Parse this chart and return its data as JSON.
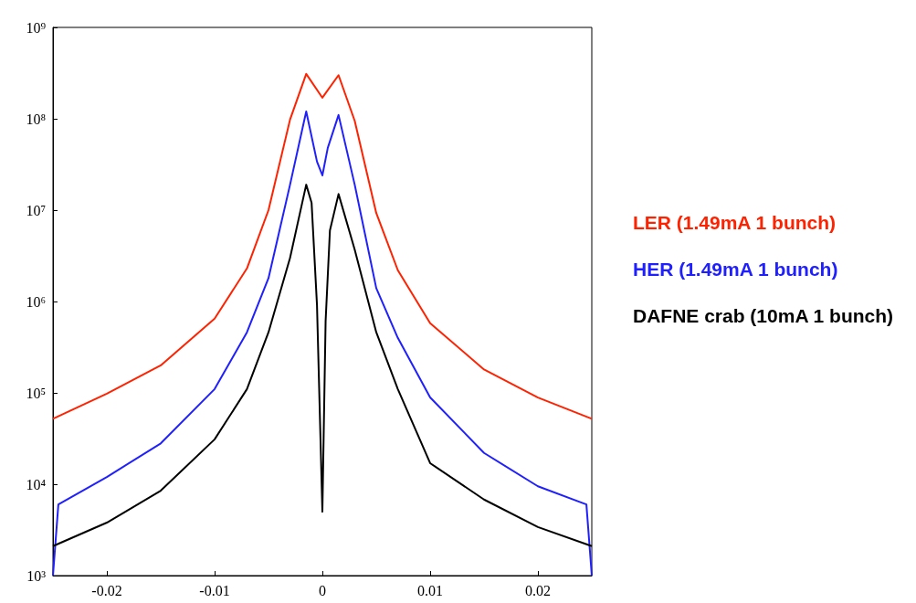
{
  "chart_data": {
    "type": "line",
    "log": "y",
    "xlim": [
      -0.025,
      0.025
    ],
    "xticks": [
      -0.02,
      -0.01,
      0,
      0.01,
      0.02
    ],
    "ylim": [
      1000,
      1000000000
    ],
    "yticks": [
      {
        "value": 1000,
        "label": "10³"
      },
      {
        "value": 10000,
        "label": "10⁴"
      },
      {
        "value": 100000,
        "label": "10⁵"
      },
      {
        "value": 1000000,
        "label": "10⁶"
      },
      {
        "value": 10000000,
        "label": "10⁷"
      },
      {
        "value": 100000000,
        "label": "10⁸"
      },
      {
        "value": 1000000000,
        "label": "10⁹"
      }
    ],
    "grid": false,
    "legend": "right",
    "marker": "none",
    "series": [
      {
        "name": "LER (1.49mA 1 bunch)",
        "color": "#ff2200",
        "x": [
          -0.025,
          -0.02,
          -0.015,
          -0.01,
          -0.007,
          -0.005,
          -0.003,
          -0.0015,
          0,
          0.0015,
          0.003,
          0.005,
          0.007,
          0.01,
          0.015,
          0.02,
          0.025
        ],
        "values": [
          52000,
          98000,
          200000,
          650000,
          2300000,
          10000000,
          98000000,
          310000000,
          170000000,
          300000000,
          95000000,
          9300000,
          2200000,
          580000,
          180000,
          89000,
          52000
        ]
      },
      {
        "name": "HER (1.49mA 1 bunch)",
        "color": "#2020ff",
        "x": [
          -0.025,
          -0.0245,
          -0.02,
          -0.015,
          -0.01,
          -0.007,
          -0.005,
          -0.003,
          -0.0015,
          -0.0005,
          0,
          0.0005,
          0.0015,
          0.003,
          0.005,
          0.007,
          0.01,
          0.015,
          0.02,
          0.0245,
          0.025
        ],
        "values": [
          1000,
          6000,
          12000,
          28000,
          110000,
          460000,
          1800000,
          19000000,
          120000000,
          34000000,
          24000000,
          48000000,
          110000000,
          19000000,
          1400000,
          400000,
          89000,
          22000,
          9500,
          6000,
          1000
        ]
      },
      {
        "name": "DAFNE crab (10mA 1 bunch)",
        "color": "#000000",
        "x": [
          -0.025,
          -0.02,
          -0.015,
          -0.01,
          -0.007,
          -0.005,
          -0.003,
          -0.0015,
          -0.001,
          -0.0005,
          0,
          0.0003,
          0.0007,
          0.0015,
          0.003,
          0.005,
          0.007,
          0.01,
          0.015,
          0.02,
          0.025
        ],
        "values": [
          2100,
          3800,
          8500,
          31000,
          110000,
          460000,
          3000000,
          19000000,
          12000000,
          910000,
          5000,
          610000,
          6000000,
          15000000,
          3700000,
          460000,
          110000,
          17000,
          6800,
          3400,
          2100
        ]
      }
    ]
  }
}
